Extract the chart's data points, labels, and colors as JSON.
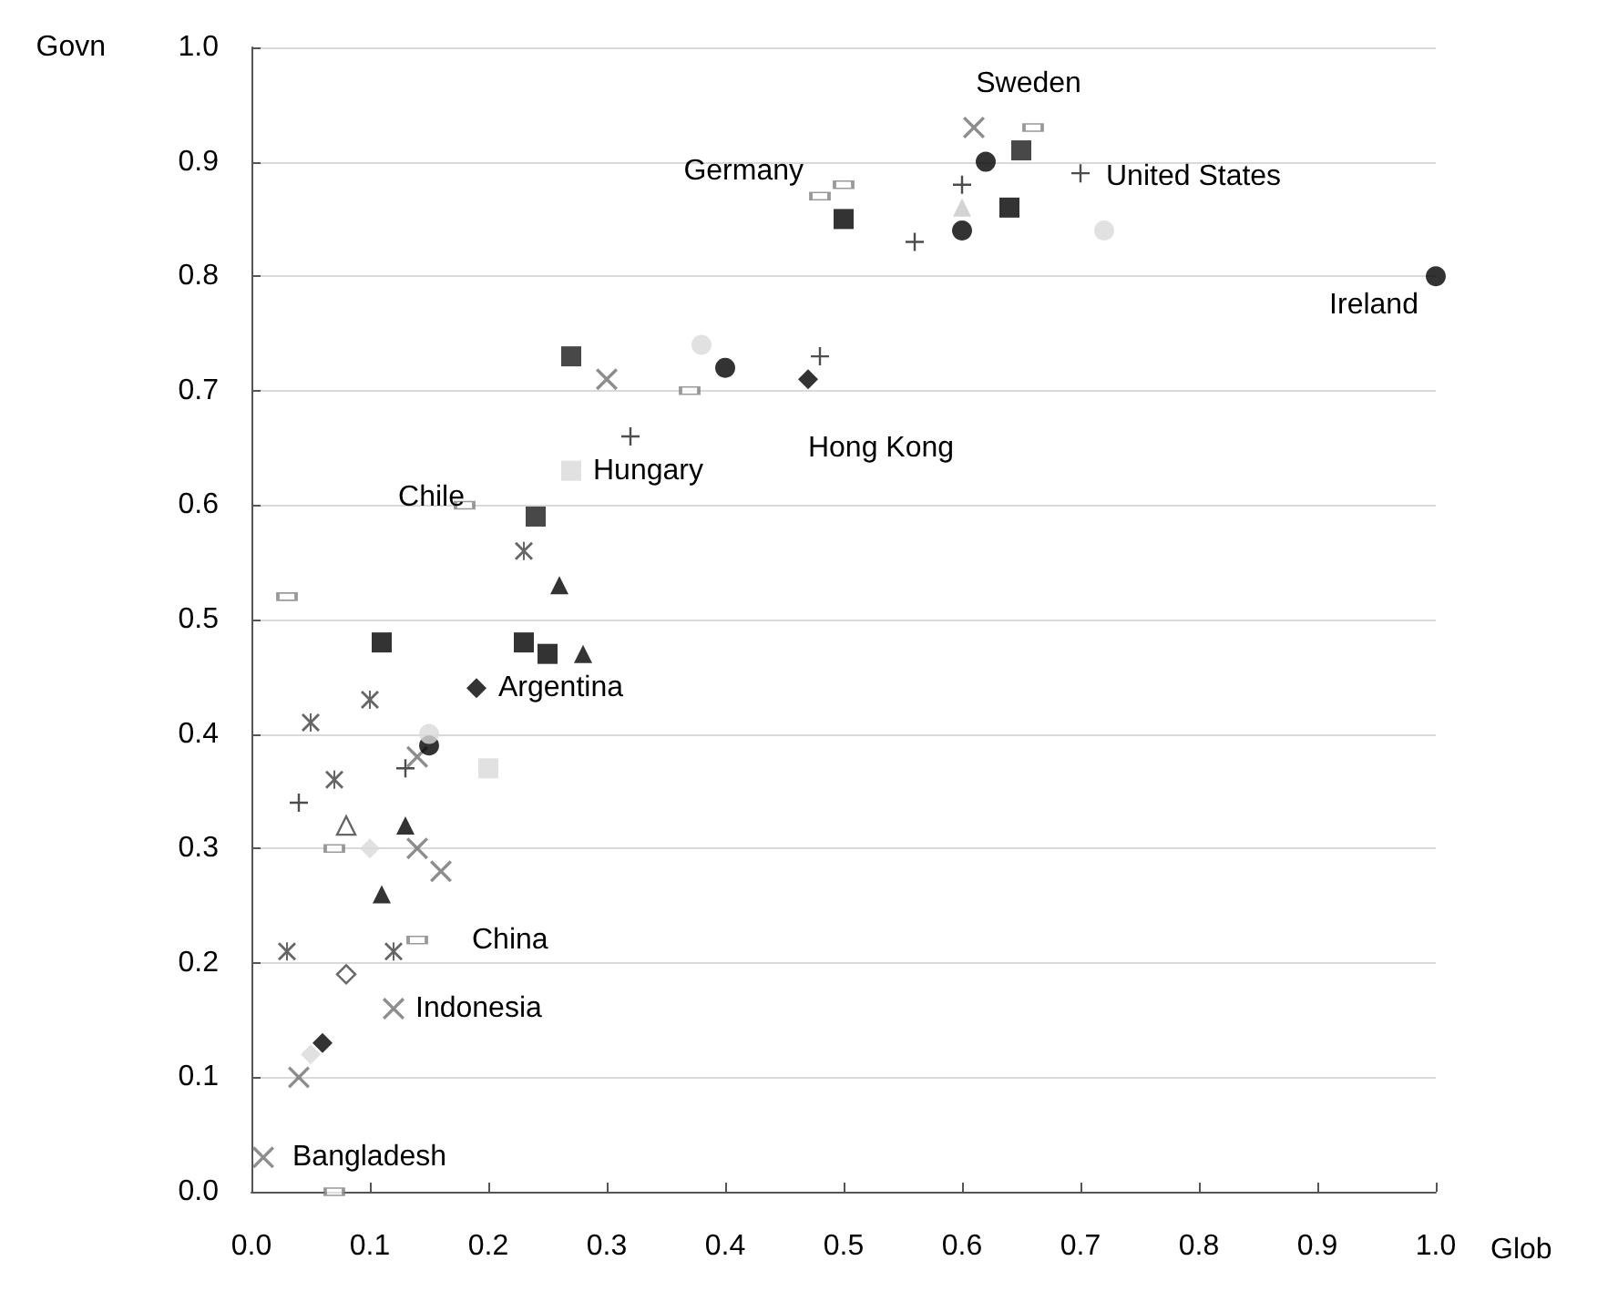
{
  "chart_data": {
    "type": "scatter",
    "xlabel": "Glob",
    "ylabel": "Govn",
    "xlim": [
      0,
      1
    ],
    "ylim": [
      0,
      1
    ],
    "xticks": [
      {
        "value": 0,
        "label": "0.0"
      },
      0.1,
      0.2,
      0.3,
      0.4,
      0.5,
      0.6,
      0.7,
      0.8,
      0.9,
      {
        "value": 1,
        "label": "1.0"
      }
    ],
    "yticks": [
      {
        "value": 0,
        "label": "0.0"
      },
      0.1,
      0.2,
      0.3,
      0.4,
      0.5,
      0.6,
      0.7,
      0.8,
      0.9,
      {
        "value": 1,
        "label": "1.0"
      }
    ],
    "grid": "y",
    "series": [
      {
        "marker": "cross",
        "color": "#707070",
        "x": [
          0.61,
          0.3,
          0.01,
          0.12,
          0.14,
          0.16,
          0.04,
          0.14
        ],
        "values": [
          0.93,
          0.71,
          0.03,
          0.16,
          0.3,
          0.28,
          0.1,
          0.38
        ]
      },
      {
        "marker": "star",
        "color": "#404040",
        "x": [
          0.05,
          0.23,
          0.1,
          0.07,
          0.03,
          0.12
        ],
        "values": [
          0.41,
          0.56,
          0.43,
          0.36,
          0.21,
          0.21
        ]
      },
      {
        "marker": "plus",
        "color": "#202020",
        "x": [
          0.7,
          0.56,
          0.6,
          0.48,
          0.32,
          0.04,
          0.13
        ],
        "values": [
          0.89,
          0.83,
          0.88,
          0.73,
          0.66,
          0.34,
          0.37
        ]
      },
      {
        "marker": "circle",
        "color": "#000000",
        "x": [
          1.0,
          0.6,
          0.4,
          0.62,
          0.15
        ],
        "values": [
          0.8,
          0.84,
          0.72,
          0.9,
          0.39
        ]
      },
      {
        "marker": "circle",
        "color": "#d9d9d9",
        "x": [
          0.72,
          0.38,
          0.15
        ],
        "values": [
          0.84,
          0.74,
          0.4
        ]
      },
      {
        "marker": "square",
        "color": "#000000",
        "x": [
          0.5,
          0.64,
          0.11,
          0.23,
          0.25
        ],
        "values": [
          0.85,
          0.86,
          0.48,
          0.48,
          0.47
        ]
      },
      {
        "marker": "square",
        "color": "#d9d9d9",
        "x": [
          0.27,
          0.2
        ],
        "values": [
          0.63,
          0.37
        ]
      },
      {
        "marker": "triangle",
        "color": "#000000",
        "x": [
          0.26,
          0.28,
          0.13,
          0.11
        ],
        "values": [
          0.53,
          0.47,
          0.32,
          0.26
        ]
      },
      {
        "marker": "triangle",
        "color": "#c8c8c8",
        "x": [
          0.6
        ],
        "values": [
          0.86
        ]
      },
      {
        "marker": "triangle-open",
        "color": "#404040",
        "x": [
          0.08
        ],
        "values": [
          0.32
        ]
      },
      {
        "marker": "diamond",
        "color": "#000000",
        "x": [
          0.47,
          0.19,
          0.06
        ],
        "values": [
          0.71,
          0.44,
          0.13
        ]
      },
      {
        "marker": "diamond",
        "color": "#d9d9d9",
        "x": [
          0.1,
          0.05
        ],
        "values": [
          0.3,
          0.12
        ]
      },
      {
        "marker": "diamond-open",
        "color": "#404040",
        "x": [
          0.08
        ],
        "values": [
          0.19
        ]
      },
      {
        "marker": "square",
        "color": "#1a1a1a",
        "x": [
          0.27,
          0.24,
          0.65
        ],
        "values": [
          0.73,
          0.59,
          0.91
        ]
      },
      {
        "marker": "square-open",
        "color": "#808080",
        "x": [
          0.66,
          0.48,
          0.5,
          0.18,
          0.14,
          0.03,
          0.07,
          0.37,
          0.07
        ],
        "values": [
          0.93,
          0.87,
          0.88,
          0.6,
          0.22,
          0.52,
          0.3,
          0.7,
          0.0
        ]
      }
    ],
    "annotations": [
      {
        "text": "Sweden",
        "x": 0.61,
        "y": 0.93
      },
      {
        "text": "Germany",
        "x": 0.5,
        "y": 0.85
      },
      {
        "text": "United States",
        "x": 0.7,
        "y": 0.89
      },
      {
        "text": "Ireland",
        "x": 1.0,
        "y": 0.8
      },
      {
        "text": "Hong Kong",
        "x": 0.47,
        "y": 0.71
      },
      {
        "text": "Hungary",
        "x": 0.27,
        "y": 0.63
      },
      {
        "text": "Chile",
        "x": 0.18,
        "y": 0.6
      },
      {
        "text": "Argentina",
        "x": 0.19,
        "y": 0.44
      },
      {
        "text": "China",
        "x": 0.14,
        "y": 0.22
      },
      {
        "text": "Indonesia",
        "x": 0.12,
        "y": 0.16
      },
      {
        "text": "Bangladesh",
        "x": 0.01,
        "y": 0.03
      }
    ]
  }
}
